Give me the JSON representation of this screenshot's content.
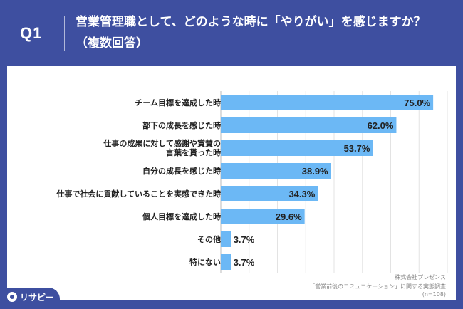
{
  "header": {
    "q_label": "Q1",
    "question": "営業管理職として、どのような時に「やりがい」を感じますか？（複数回答）"
  },
  "chart_data": {
    "type": "bar",
    "orientation": "horizontal",
    "categories": [
      "チーム目標を達成した時",
      "部下の成長を感じた時",
      "仕事の成果に対して感謝や賞賛の言葉を貰った時",
      "自分の成長を感じた時",
      "仕事で社会に貢献していることを実感できた時",
      "個人目標を達成した時",
      "その他",
      "特にない"
    ],
    "category_lines": [
      [
        "チーム目標を達成した時"
      ],
      [
        "部下の成長を感じた時"
      ],
      [
        "仕事の成果に対して感謝や賞賛の",
        "言葉を貰った時"
      ],
      [
        "自分の成長を感じた時"
      ],
      [
        "仕事で社会に貢献していることを実感できた時"
      ],
      [
        "個人目標を達成した時"
      ],
      [
        "その他"
      ],
      [
        "特にない"
      ]
    ],
    "values": [
      75.0,
      62.0,
      53.7,
      38.9,
      34.3,
      29.6,
      3.7,
      3.7
    ],
    "value_labels": [
      "75.0%",
      "62.0%",
      "53.7%",
      "38.9%",
      "34.3%",
      "29.6%",
      "3.7%",
      "3.7%"
    ],
    "xlim": [
      0,
      80
    ],
    "grid": true,
    "bar_color": "#6cb8f5"
  },
  "source": {
    "line1": "株式会社プレゼンス",
    "line2": "「営業前後のコミュニケーション」に関する実態調査",
    "line3": "(n=108)"
  },
  "logo": {
    "text": "リサピー"
  }
}
